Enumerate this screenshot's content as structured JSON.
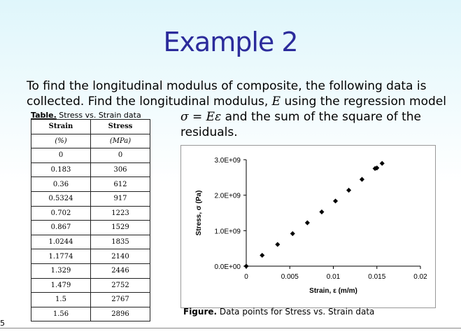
{
  "slide": {
    "title": "Example 2",
    "intro_line1": "To find the longitudinal modulus of composite, the following data is",
    "intro_line2a": "collected.  Find the longitudinal modulus, ",
    "intro_var_E": "E",
    "intro_line2b": " using the regression model",
    "equation": "σ = Eε",
    "eq_text": "  and the sum of the square of the",
    "intro_line3": "residuals.",
    "slide_number": "5"
  },
  "table": {
    "caption_bold": "Table.",
    "caption_text": " Stress vs. Strain data",
    "headers": [
      "Strain",
      "Stress"
    ],
    "units": [
      "(%)",
      "(MPa)"
    ],
    "rows": [
      [
        "0",
        "0"
      ],
      [
        "0.183",
        "306"
      ],
      [
        "0.36",
        "612"
      ],
      [
        "0.5324",
        "917"
      ],
      [
        "0.702",
        "1223"
      ],
      [
        "0.867",
        "1529"
      ],
      [
        "1.0244",
        "1835"
      ],
      [
        "1.1774",
        "2140"
      ],
      [
        "1.329",
        "2446"
      ],
      [
        "1.479",
        "2752"
      ],
      [
        "1.5",
        "2767"
      ],
      [
        "1.56",
        "2896"
      ]
    ]
  },
  "figure": {
    "caption_bold": "Figure.",
    "caption_text": " Data points for Stress vs. Strain data"
  },
  "chart_data": {
    "type": "scatter",
    "xlabel": "Strain, ε (m/m)",
    "ylabel": "Stress, σ (Pa)",
    "xlim": [
      0,
      0.02
    ],
    "ylim": [
      0,
      3000000000
    ],
    "xticks": [
      "0",
      "0.005",
      "0.01",
      "0.015",
      "0.02"
    ],
    "yticks": [
      "0.0E+00",
      "1.0E+09",
      "2.0E+09",
      "3.0E+09"
    ],
    "x": [
      0,
      0.00183,
      0.0036,
      0.005324,
      0.00702,
      0.00867,
      0.010244,
      0.011774,
      0.01329,
      0.01479,
      0.015,
      0.0156
    ],
    "y": [
      0,
      306000000,
      612000000,
      917000000,
      1223000000,
      1529000000,
      1835000000,
      2140000000,
      2446000000,
      2752000000,
      2767000000,
      2896000000
    ],
    "grid": false,
    "marker_color": "#000000"
  }
}
